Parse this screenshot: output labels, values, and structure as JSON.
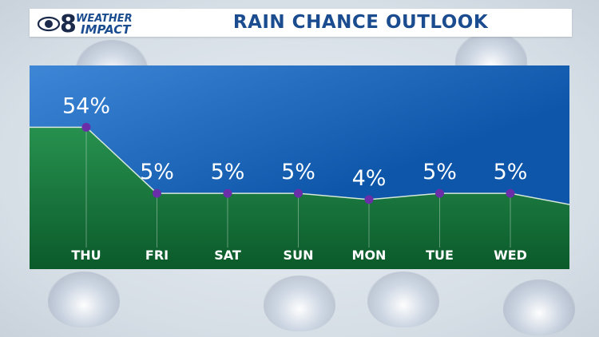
{
  "header": {
    "logo_number": "8",
    "logo_line1": "WEATHER",
    "logo_line2": "IMPACT",
    "title": "RAIN CHANCE OUTLOOK"
  },
  "colors": {
    "title": "#1a4c8f",
    "sky_top": "#3e86d6",
    "sky_bottom": "#0d56a9",
    "ground_top": "#27914f",
    "ground_bottom": "#0b5a2a",
    "point": "#6a2fa8",
    "label": "#ffffff"
  },
  "chart_data": {
    "type": "area",
    "categories": [
      "THU",
      "FRI",
      "SAT",
      "SUN",
      "MON",
      "TUE",
      "WED"
    ],
    "values": [
      54,
      5,
      5,
      5,
      4,
      5,
      5
    ],
    "value_labels": [
      "54%",
      "5%",
      "5%",
      "5%",
      "4%",
      "5%",
      "5%"
    ],
    "unit": "%",
    "title": "RAIN CHANCE OUTLOOK",
    "xlabel": "",
    "ylabel": "",
    "grid": false,
    "legend": "none"
  }
}
